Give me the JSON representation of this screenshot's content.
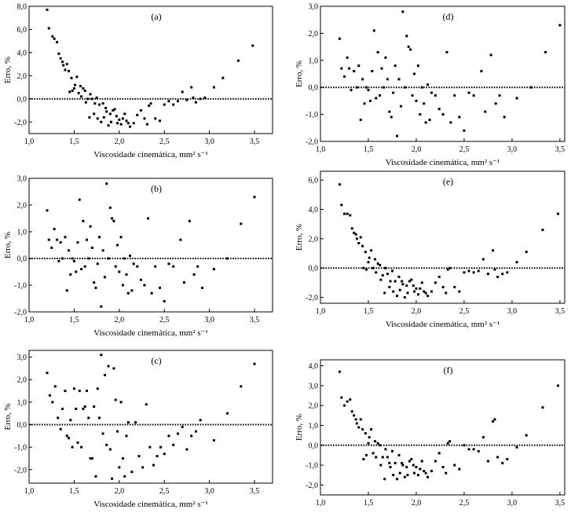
{
  "chart_data": [
    {
      "type": "scatter",
      "panel_label": "(a)",
      "xlabel": "Viscosidade cinemática, mm² s⁻¹",
      "ylabel": "Erro, %",
      "xlim": [
        1.0,
        3.7
      ],
      "ylim": [
        -3.0,
        8.0
      ],
      "xticks": [
        1.0,
        1.5,
        2.0,
        2.5,
        3.0,
        3.5
      ],
      "xtick_labels": [
        "1,0",
        "1,5",
        "2,0",
        "2,5",
        "3,0",
        "3,5"
      ],
      "yticks": [
        -2,
        0,
        2,
        4,
        6,
        8
      ],
      "ytick_labels": [
        "-2,0",
        "0,0",
        "2,0",
        "4,0",
        "6,0",
        "8,0"
      ],
      "zero_line": "dotted",
      "x": [
        1.2,
        1.22,
        1.26,
        1.28,
        1.31,
        1.33,
        1.35,
        1.37,
        1.38,
        1.4,
        1.42,
        1.44,
        1.45,
        1.47,
        1.48,
        1.5,
        1.51,
        1.53,
        1.55,
        1.57,
        1.58,
        1.6,
        1.62,
        1.63,
        1.65,
        1.67,
        1.68,
        1.7,
        1.72,
        1.73,
        1.75,
        1.76,
        1.78,
        1.8,
        1.82,
        1.83,
        1.85,
        1.86,
        1.88,
        1.9,
        1.91,
        1.93,
        1.95,
        1.97,
        1.98,
        2.0,
        2.02,
        2.04,
        2.06,
        2.08,
        2.1,
        2.12,
        2.16,
        2.2,
        2.24,
        2.28,
        2.31,
        2.33,
        2.35,
        2.4,
        2.45,
        2.5,
        2.55,
        2.6,
        2.65,
        2.7,
        2.75,
        2.8,
        2.82,
        2.85,
        2.9,
        2.95,
        3.05,
        3.15,
        3.32,
        3.48
      ],
      "y": [
        7.7,
        6.1,
        5.4,
        5.2,
        4.9,
        3.9,
        3.5,
        3.2,
        2.9,
        2.5,
        3.0,
        2.4,
        0.6,
        1.8,
        0.7,
        0.9,
        1.2,
        1.9,
        0.5,
        1.1,
        0.2,
        0.9,
        0.7,
        -0.3,
        0.0,
        -1.6,
        0.4,
        0.0,
        -1.3,
        -0.4,
        0.1,
        -1.7,
        -0.5,
        -2.0,
        -0.4,
        -1.6,
        -0.8,
        -1.1,
        -2.3,
        -1.3,
        -2.0,
        -1.0,
        -0.9,
        -1.5,
        -2.1,
        -1.8,
        -2.2,
        -1.7,
        -1.3,
        -1.9,
        -2.1,
        -2.4,
        -2.1,
        -1.4,
        -1.0,
        -1.7,
        -2.2,
        -0.6,
        -0.4,
        -1.7,
        -1.9,
        -0.5,
        -0.2,
        -0.5,
        -0.2,
        0.6,
        -0.1,
        1.0,
        0.1,
        -0.3,
        0.0,
        0.1,
        1.0,
        1.8,
        3.3,
        4.6
      ]
    },
    {
      "type": "scatter",
      "panel_label": "(b)",
      "xlabel": "Viscosidade cinemática, mm² s⁻¹",
      "ylabel": "Erro, %",
      "xlim": [
        1.0,
        3.7
      ],
      "ylim": [
        -2.0,
        3.0
      ],
      "xticks": [
        1.0,
        1.5,
        2.0,
        2.5,
        3.0,
        3.5
      ],
      "xtick_labels": [
        "1,0",
        "1,5",
        "2,0",
        "2,5",
        "3,0",
        "3,5"
      ],
      "yticks": [
        -2,
        -1,
        0,
        1,
        2,
        3
      ],
      "ytick_labels": [
        "-2,0",
        "-1,0",
        "0,0",
        "1,0",
        "2,0",
        "3,0"
      ],
      "zero_line": "dotted",
      "x": [
        1.2,
        1.22,
        1.25,
        1.28,
        1.31,
        1.33,
        1.35,
        1.37,
        1.4,
        1.42,
        1.44,
        1.46,
        1.48,
        1.5,
        1.52,
        1.54,
        1.56,
        1.58,
        1.6,
        1.62,
        1.64,
        1.66,
        1.68,
        1.7,
        1.72,
        1.74,
        1.76,
        1.78,
        1.8,
        1.82,
        1.84,
        1.86,
        1.88,
        1.9,
        1.92,
        1.94,
        1.96,
        1.98,
        2.0,
        2.02,
        2.04,
        2.06,
        2.08,
        2.1,
        2.12,
        2.14,
        2.16,
        2.2,
        2.24,
        2.28,
        2.32,
        2.36,
        2.4,
        2.45,
        2.5,
        2.55,
        2.6,
        2.68,
        2.72,
        2.78,
        2.83,
        2.87,
        2.92,
        3.05,
        3.2,
        3.35,
        3.5
      ],
      "y": [
        1.8,
        0.7,
        0.4,
        1.1,
        0.7,
        -0.1,
        0.6,
        0.0,
        0.8,
        -1.2,
        0.3,
        -0.6,
        0.0,
        -0.1,
        -0.5,
        0.6,
        2.2,
        -0.4,
        1.4,
        -0.3,
        0.7,
        0.0,
        1.2,
        0.4,
        -0.9,
        -1.1,
        -0.2,
        0.8,
        -1.8,
        0.3,
        -0.7,
        2.8,
        0.0,
        1.9,
        1.5,
        1.4,
        -0.3,
        0.5,
        -0.5,
        0.8,
        -1.0,
        0.0,
        -0.6,
        -1.3,
        0.1,
        -1.2,
        -0.2,
        -0.3,
        -0.8,
        -1.0,
        1.5,
        -1.3,
        -0.3,
        -1.1,
        -1.6,
        -0.2,
        -0.3,
        0.7,
        -0.9,
        1.4,
        -0.6,
        -0.3,
        -1.1,
        -0.4,
        0.0,
        1.3,
        2.3
      ]
    },
    {
      "type": "scatter",
      "panel_label": "(c)",
      "xlabel": "Viscosidade cinemática, mm² s⁻¹",
      "ylabel": "Erro, %",
      "xlim": [
        1.0,
        3.7
      ],
      "ylim": [
        -2.6,
        3.3
      ],
      "xticks": [
        1.0,
        1.5,
        2.0,
        2.5,
        3.0,
        3.5
      ],
      "xtick_labels": [
        "1,0",
        "1,5",
        "2,0",
        "2,5",
        "3,0",
        "3,5"
      ],
      "yticks": [
        -2,
        -1,
        0,
        1,
        2,
        3
      ],
      "ytick_labels": [
        "-2,0",
        "-1,0",
        "0,0",
        "1,0",
        "2,0",
        "3,0"
      ],
      "zero_line": "dotted",
      "x": [
        1.2,
        1.23,
        1.26,
        1.29,
        1.32,
        1.35,
        1.37,
        1.4,
        1.42,
        1.44,
        1.46,
        1.48,
        1.5,
        1.52,
        1.54,
        1.56,
        1.58,
        1.6,
        1.62,
        1.64,
        1.66,
        1.68,
        1.7,
        1.72,
        1.74,
        1.76,
        1.78,
        1.8,
        1.82,
        1.84,
        1.86,
        1.88,
        1.9,
        1.92,
        1.94,
        1.96,
        1.98,
        2.0,
        2.02,
        2.04,
        2.06,
        2.08,
        2.1,
        2.14,
        2.18,
        2.22,
        2.26,
        2.3,
        2.34,
        2.38,
        2.42,
        2.46,
        2.5,
        2.55,
        2.6,
        2.65,
        2.7,
        2.75,
        2.8,
        2.85,
        2.9,
        3.05,
        3.2,
        3.35,
        3.5
      ],
      "y": [
        2.3,
        1.3,
        1.0,
        1.7,
        0.3,
        -0.2,
        0.7,
        1.5,
        -0.5,
        -0.6,
        0.2,
        -1.0,
        1.6,
        0.7,
        -0.8,
        1.5,
        -1.0,
        0.7,
        0.8,
        1.5,
        0.3,
        -1.5,
        -1.5,
        0.8,
        -2.3,
        1.6,
        0.3,
        3.1,
        -0.4,
        2.2,
        -0.9,
        2.6,
        -1.1,
        -2.4,
        2.5,
        1.1,
        -0.3,
        -1.9,
        1.0,
        -1.5,
        -2.3,
        -0.5,
        0.1,
        -2.1,
        0.1,
        -1.4,
        -1.9,
        0.9,
        -1.0,
        -1.8,
        -1.4,
        -1.0,
        -1.3,
        -0.5,
        -0.9,
        -0.4,
        -0.1,
        -1.1,
        -0.5,
        -0.3,
        0.2,
        -0.7,
        0.5,
        1.7,
        2.7
      ]
    },
    {
      "type": "scatter",
      "panel_label": "(d)",
      "xlabel": "Viscosidade cinemática, mm² s⁻¹",
      "ylabel": "Erro, %",
      "xlim": [
        1.0,
        3.55
      ],
      "ylim": [
        -2.0,
        3.0
      ],
      "xticks": [
        1.0,
        1.5,
        2.0,
        2.5,
        3.0,
        3.5
      ],
      "xtick_labels": [
        "1,0",
        "1,5",
        "2,0",
        "2,5",
        "3,0",
        "3,5"
      ],
      "yticks": [
        -2,
        -1,
        0,
        1,
        2,
        3
      ],
      "ytick_labels": [
        "-2,0",
        "-1,0",
        "0,0",
        "1,0",
        "2,0",
        "3,0"
      ],
      "zero_line": "dotted",
      "x": [
        1.2,
        1.22,
        1.25,
        1.28,
        1.3,
        1.32,
        1.35,
        1.38,
        1.4,
        1.42,
        1.44,
        1.46,
        1.48,
        1.5,
        1.52,
        1.54,
        1.56,
        1.58,
        1.6,
        1.62,
        1.64,
        1.66,
        1.68,
        1.7,
        1.72,
        1.74,
        1.76,
        1.78,
        1.8,
        1.82,
        1.84,
        1.86,
        1.88,
        1.9,
        1.92,
        1.94,
        1.96,
        1.98,
        2.0,
        2.02,
        2.04,
        2.06,
        2.08,
        2.1,
        2.12,
        2.14,
        2.16,
        2.2,
        2.24,
        2.28,
        2.32,
        2.36,
        2.4,
        2.45,
        2.5,
        2.55,
        2.6,
        2.68,
        2.72,
        2.78,
        2.83,
        2.87,
        2.92,
        3.05,
        3.2,
        3.35,
        3.5
      ],
      "y": [
        1.8,
        0.7,
        0.4,
        1.1,
        0.7,
        -0.1,
        0.6,
        0.0,
        0.8,
        -1.2,
        0.3,
        -0.6,
        0.0,
        -0.1,
        -0.5,
        0.6,
        2.1,
        -0.4,
        1.3,
        -0.3,
        0.7,
        0.0,
        1.1,
        0.3,
        -0.9,
        -1.1,
        -0.2,
        0.8,
        -1.8,
        0.3,
        -0.7,
        2.8,
        0.0,
        1.9,
        1.5,
        1.4,
        -0.3,
        0.5,
        -0.5,
        0.8,
        -1.0,
        0.0,
        -0.6,
        -1.3,
        0.1,
        -1.2,
        -0.2,
        -0.3,
        -0.8,
        -1.0,
        1.3,
        -1.3,
        -0.3,
        -1.1,
        -1.6,
        -0.2,
        -0.3,
        0.6,
        -0.9,
        1.2,
        -0.6,
        -0.3,
        -1.1,
        -0.4,
        0.0,
        1.3,
        2.3
      ]
    },
    {
      "type": "scatter",
      "panel_label": "(e)",
      "xlabel": "Viscosidade cinemática, mm² s⁻¹",
      "ylabel": "Erro, %",
      "xlim": [
        1.0,
        3.55
      ],
      "ylim": [
        -2.4,
        6.6
      ],
      "xticks": [
        1.0,
        1.5,
        2.0,
        2.5,
        3.0,
        3.5
      ],
      "xtick_labels": [
        "1,0",
        "1,5",
        "2,0",
        "2,5",
        "3,0",
        "3,5"
      ],
      "yticks": [
        -2,
        0,
        2,
        4,
        6
      ],
      "ytick_labels": [
        "-2,0",
        "0,0",
        "2,0",
        "4,0",
        "6,0"
      ],
      "zero_line": "dotted",
      "x": [
        1.2,
        1.22,
        1.25,
        1.28,
        1.31,
        1.33,
        1.35,
        1.37,
        1.38,
        1.4,
        1.42,
        1.44,
        1.45,
        1.47,
        1.48,
        1.5,
        1.51,
        1.53,
        1.55,
        1.57,
        1.58,
        1.6,
        1.62,
        1.63,
        1.65,
        1.67,
        1.68,
        1.7,
        1.72,
        1.73,
        1.75,
        1.76,
        1.78,
        1.8,
        1.82,
        1.83,
        1.85,
        1.86,
        1.88,
        1.9,
        1.91,
        1.93,
        1.95,
        1.97,
        1.98,
        2.0,
        2.02,
        2.04,
        2.06,
        2.08,
        2.1,
        2.12,
        2.16,
        2.2,
        2.24,
        2.28,
        2.31,
        2.33,
        2.35,
        2.4,
        2.45,
        2.5,
        2.55,
        2.6,
        2.65,
        2.7,
        2.75,
        2.8,
        2.82,
        2.85,
        2.9,
        2.95,
        3.05,
        3.15,
        3.32,
        3.48
      ],
      "y": [
        5.7,
        4.3,
        3.7,
        3.7,
        3.6,
        2.7,
        2.4,
        2.3,
        2.0,
        1.7,
        2.1,
        1.5,
        0.0,
        1.1,
        -0.1,
        0.4,
        0.7,
        1.2,
        0.0,
        0.6,
        -0.3,
        0.3,
        0.2,
        -0.8,
        -0.5,
        -1.7,
        0.0,
        -0.4,
        -1.3,
        -0.9,
        -0.2,
        -1.6,
        -0.9,
        -1.9,
        -0.6,
        -1.5,
        -0.9,
        -1.1,
        -2.0,
        -1.2,
        -1.7,
        -0.9,
        -0.8,
        -1.2,
        -1.6,
        -1.4,
        -1.8,
        -1.4,
        -1.0,
        -1.6,
        -1.7,
        -1.9,
        -1.6,
        -1.0,
        -0.6,
        -1.3,
        -1.7,
        -0.1,
        0.0,
        -1.3,
        -1.6,
        -0.3,
        -0.2,
        -0.3,
        -0.2,
        0.6,
        -0.4,
        1.2,
        -0.1,
        -0.6,
        -0.4,
        -0.3,
        0.4,
        1.1,
        2.6,
        3.7
      ]
    },
    {
      "type": "scatter",
      "panel_label": "(f)",
      "xlabel": "Viscosidade cinemática, mm² s⁻¹",
      "ylabel": "Erro, %",
      "xlim": [
        1.0,
        3.55
      ],
      "ylim": [
        -2.5,
        4.3
      ],
      "xticks": [
        1.0,
        1.5,
        2.0,
        2.5,
        3.0,
        3.5
      ],
      "xtick_labels": [
        "1,0",
        "1,5",
        "2,0",
        "2,5",
        "3,0",
        "3,5"
      ],
      "yticks": [
        -2,
        -1,
        0,
        1,
        2,
        3,
        4
      ],
      "ytick_labels": [
        "-2,0",
        "-1,0",
        "0,0",
        "1,0",
        "2,0",
        "3,0",
        "4,0"
      ],
      "zero_line": "dotted",
      "x": [
        1.2,
        1.22,
        1.25,
        1.28,
        1.31,
        1.33,
        1.35,
        1.37,
        1.38,
        1.4,
        1.42,
        1.44,
        1.45,
        1.47,
        1.48,
        1.5,
        1.51,
        1.53,
        1.55,
        1.57,
        1.58,
        1.6,
        1.62,
        1.63,
        1.65,
        1.67,
        1.68,
        1.7,
        1.72,
        1.73,
        1.75,
        1.76,
        1.78,
        1.8,
        1.82,
        1.83,
        1.85,
        1.86,
        1.88,
        1.9,
        1.91,
        1.93,
        1.95,
        1.97,
        1.98,
        2.0,
        2.02,
        2.04,
        2.06,
        2.08,
        2.1,
        2.12,
        2.16,
        2.2,
        2.24,
        2.28,
        2.31,
        2.33,
        2.35,
        2.4,
        2.45,
        2.5,
        2.55,
        2.6,
        2.65,
        2.7,
        2.75,
        2.8,
        2.82,
        2.85,
        2.9,
        2.95,
        3.05,
        3.15,
        3.32,
        3.48
      ],
      "y": [
        3.7,
        2.4,
        2.0,
        2.2,
        2.3,
        1.7,
        1.5,
        1.3,
        1.1,
        0.9,
        1.3,
        0.8,
        -0.7,
        0.6,
        -0.5,
        0.1,
        0.4,
        0.8,
        -0.4,
        0.2,
        -0.6,
        0.1,
        0.0,
        -1.0,
        -0.6,
        -1.7,
        -0.2,
        -0.6,
        -0.9,
        -1.1,
        -0.3,
        -1.5,
        -0.9,
        -1.7,
        -0.5,
        -1.4,
        -0.9,
        -1.0,
        -1.6,
        -1.1,
        -1.5,
        -0.8,
        -0.7,
        -1.0,
        -1.4,
        -1.1,
        -1.5,
        -1.2,
        -0.8,
        -1.3,
        -1.4,
        -1.6,
        -1.3,
        -0.8,
        -0.4,
        -1.1,
        -1.4,
        0.1,
        0.2,
        -1.0,
        -1.2,
        0.0,
        -0.2,
        -0.2,
        -0.3,
        0.4,
        -0.8,
        1.2,
        1.3,
        -0.6,
        -0.9,
        -0.7,
        -0.1,
        0.5,
        1.9,
        3.0
      ]
    }
  ]
}
